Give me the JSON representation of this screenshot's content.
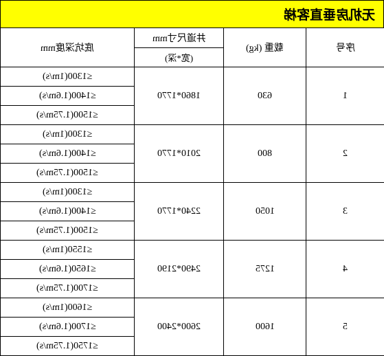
{
  "title": "无机房垂直客梯",
  "headers": {
    "depth": "底坑深度mm",
    "shaft_main": "井道尺寸mm",
    "shaft_sub": "(宽*深)",
    "load": "载重 (kg)",
    "no": "序号"
  },
  "rows": [
    {
      "no": "1",
      "load": "630",
      "shaft": "1860*1770",
      "depths": [
        "≤1300(1m/s)",
        "≤1400(1.6m/s)",
        "≤1500(1.75m/s)"
      ]
    },
    {
      "no": "2",
      "load": "800",
      "shaft": "2010*1770",
      "depths": [
        "≤1300(1m/s)",
        "≤1400(1.6m/s)",
        "≤1500(1.75m/s)"
      ]
    },
    {
      "no": "3",
      "load": "1050",
      "shaft": "2240*1770",
      "depths": [
        "≤1300(1m/s)",
        "≤1400(1.6m/s)",
        "≤1500(1.75m/s)"
      ]
    },
    {
      "no": "4",
      "load": "1275",
      "shaft": "2490*2190",
      "depths": [
        "≤1550(1m/s)",
        "≤1650(1.6m/s)",
        "≤1700(1.75m/s)"
      ]
    },
    {
      "no": "5",
      "load": "1600",
      "shaft": "2600*2400",
      "depths": [
        "≤1600(1m/s)",
        "≤1700(1.6m/s)",
        "≤1750(1.75m/s)"
      ]
    }
  ],
  "colors": {
    "title_bg": "#ffff00",
    "border": "#000000",
    "bg": "#ffffff"
  }
}
